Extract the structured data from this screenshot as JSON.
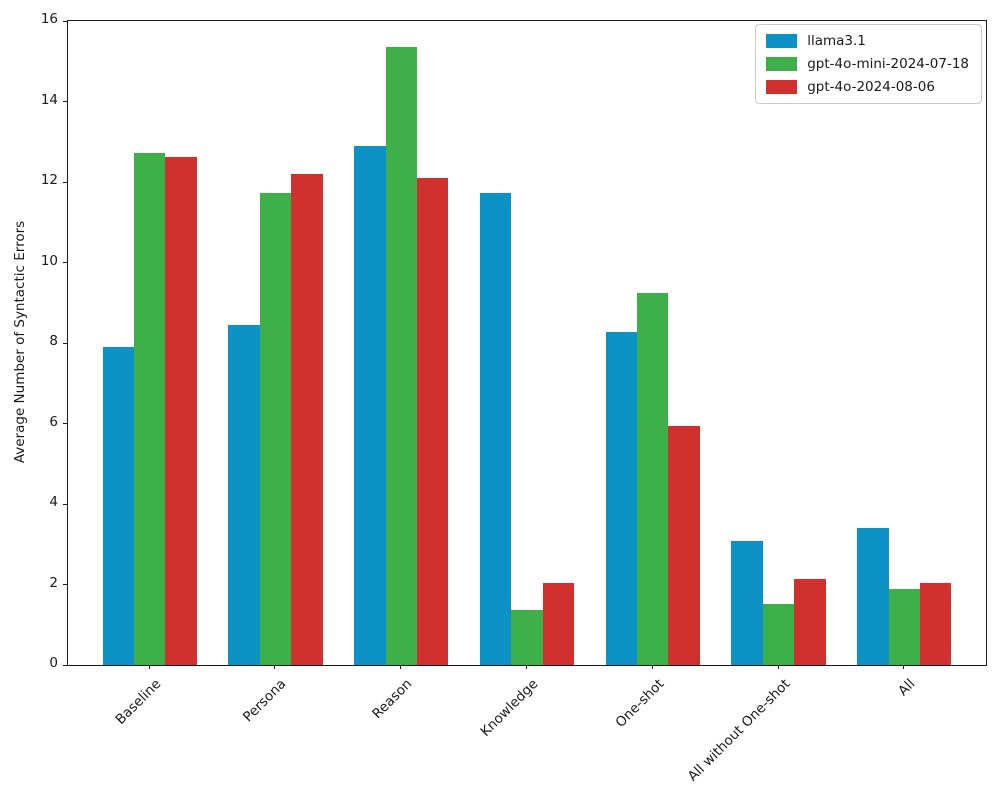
{
  "chart_data": {
    "type": "bar",
    "title": "",
    "xlabel": "",
    "ylabel": "Average Number of Syntactic Errors",
    "ylim": [
      0,
      16
    ],
    "yticks": [
      0,
      2,
      4,
      6,
      8,
      10,
      12,
      14,
      16
    ],
    "grid": false,
    "legend_position": "upper right",
    "categories": [
      "Baseline",
      "Persona",
      "Reason",
      "Knowledge",
      "One-shot",
      "All without One-shot",
      "All"
    ],
    "series": [
      {
        "name": "llama3.1",
        "color": "#0d92c6",
        "values": [
          7.9,
          8.46,
          12.89,
          11.72,
          8.27,
          3.09,
          3.4
        ]
      },
      {
        "name": "gpt-4o-mini-2024-07-18",
        "color": "#3db049",
        "values": [
          12.71,
          11.72,
          15.35,
          1.36,
          9.25,
          1.51,
          1.9
        ]
      },
      {
        "name": "gpt-4o-2024-08-06",
        "color": "#d1312e",
        "values": [
          12.63,
          12.19,
          12.1,
          2.05,
          5.93,
          2.13,
          2.03
        ]
      }
    ]
  }
}
